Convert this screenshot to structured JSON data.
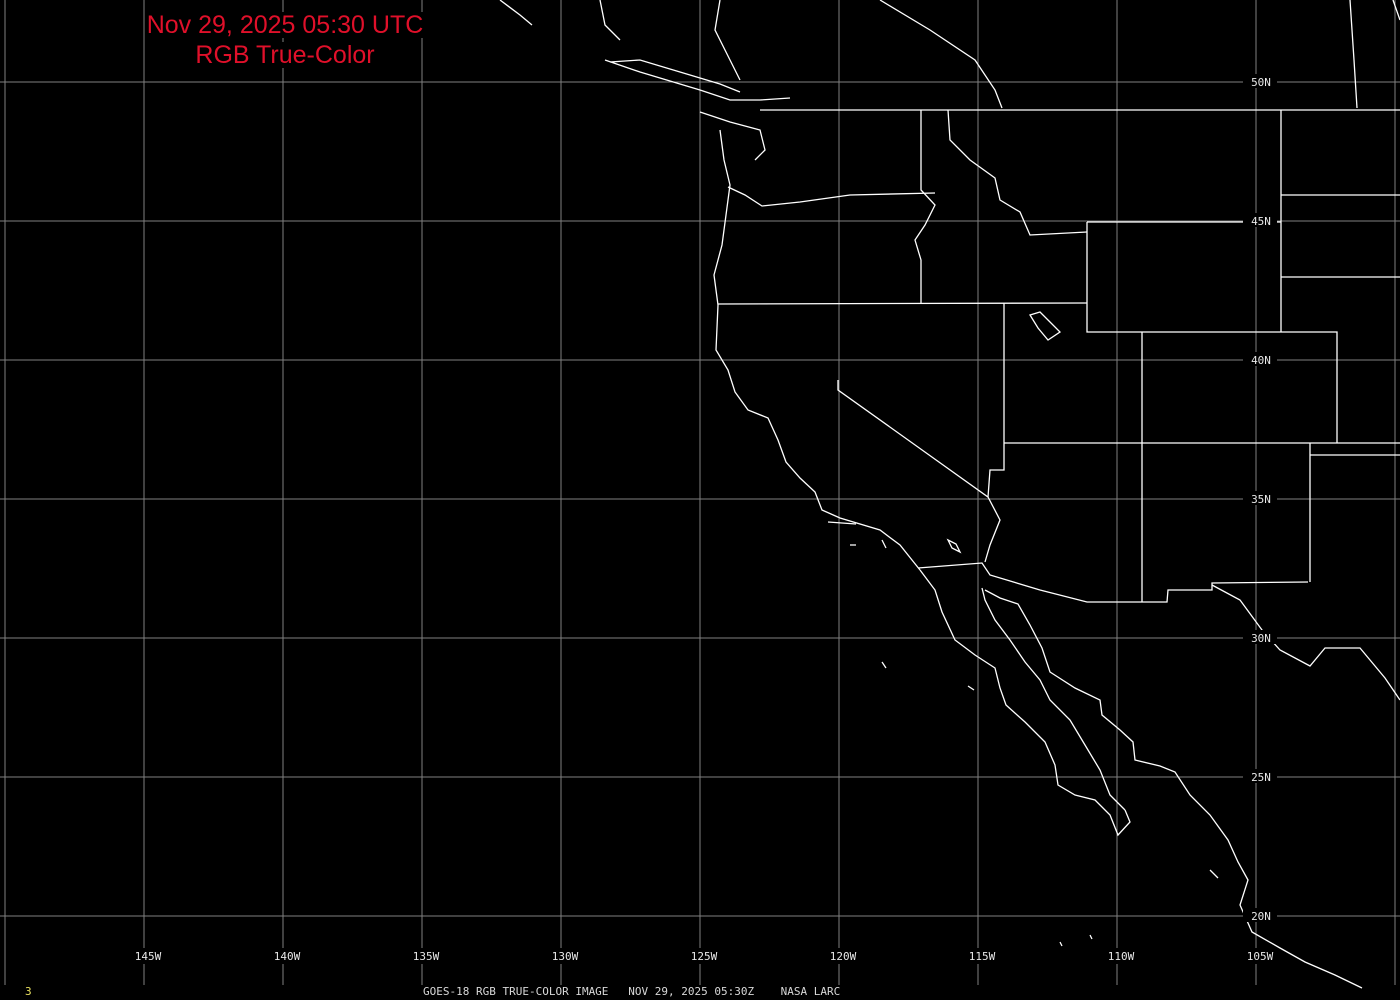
{
  "title": {
    "line1": "Nov 29, 2025 05:30 UTC",
    "line2": "RGB True-Color"
  },
  "footer": {
    "frame": "3",
    "caption": "GOES-18 RGB TRUE-COLOR IMAGE   NOV 29, 2025 05:30Z    NASA LARC"
  },
  "map": {
    "projection": "equirectangular",
    "lon_labels": [
      "145W",
      "140W",
      "135W",
      "130W",
      "125W",
      "120W",
      "115W",
      "110W",
      "105W"
    ],
    "lat_labels": [
      "50N",
      "45N",
      "40N",
      "35N",
      "30N",
      "25N",
      "20N"
    ],
    "colors": {
      "background": "#000000",
      "grid": "#808080",
      "boundaries": "#ffffff",
      "title": "#e0102a",
      "frame_number": "#e8e060"
    }
  }
}
